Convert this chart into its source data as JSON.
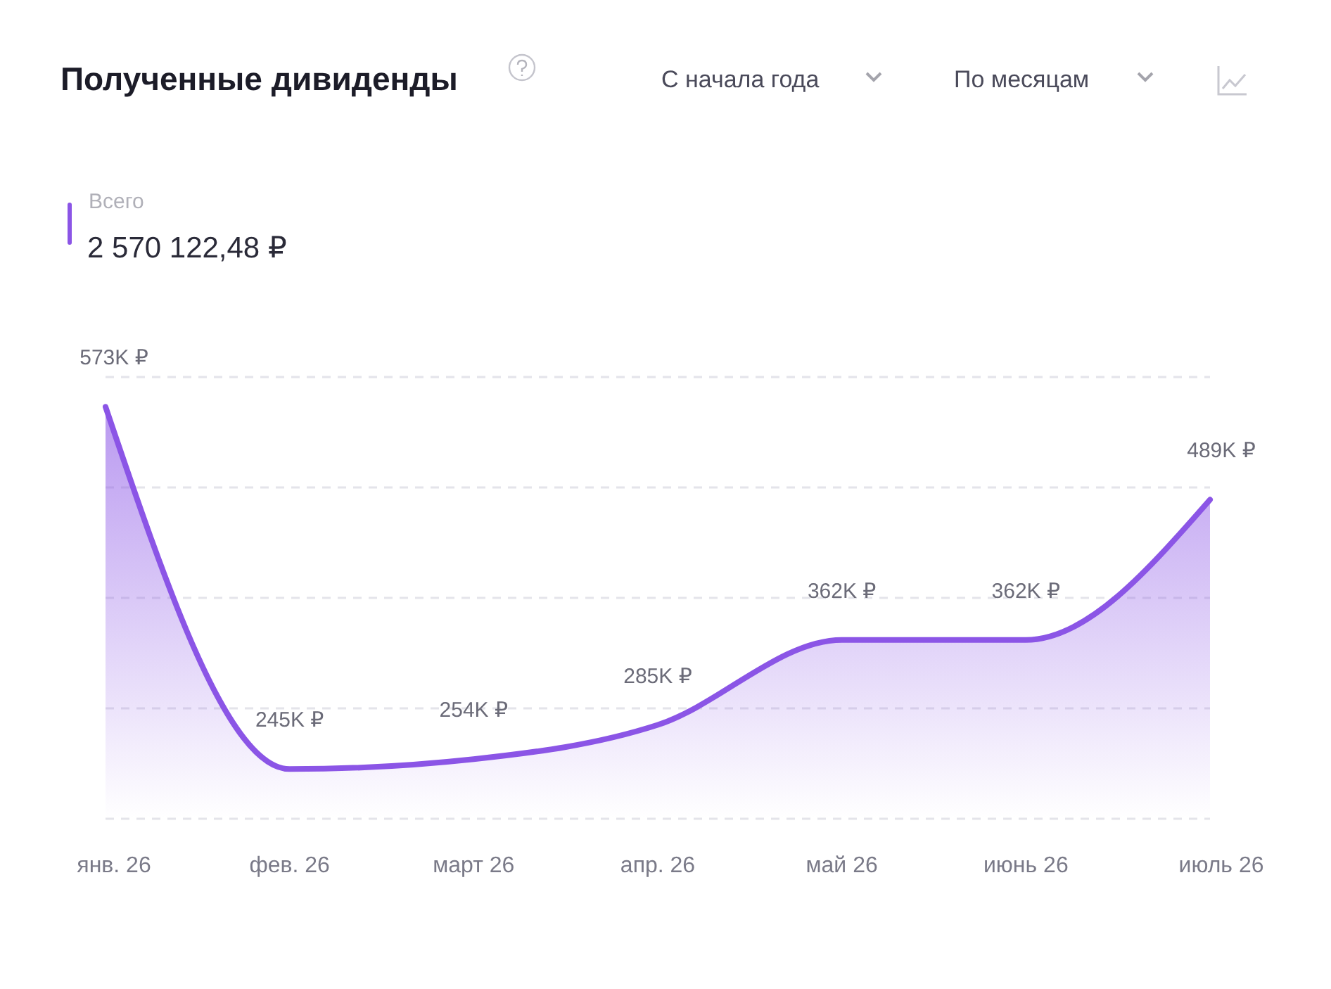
{
  "chart_data": {
    "type": "area",
    "title": "Полученные дивиденды",
    "annotations": [
      "2 570 122,48 ₽",
      "С начала года",
      "По месяцам"
    ],
    "categories": [
      "янв. 26",
      "фев. 26",
      "март 26",
      "апр. 26",
      "май 26",
      "июнь 26",
      "июль 26"
    ],
    "series": [
      {
        "name": "Всего",
        "color": "#8b55e6",
        "values": [
          573,
          245,
          254,
          285,
          362,
          362,
          489
        ],
        "value_labels": [
          "573K ₽",
          "245K ₽",
          "254K ₽",
          "285K ₽",
          "362K ₽",
          "362K ₽",
          "489K ₽"
        ]
      }
    ],
    "ylim": [
      200,
      600
    ],
    "yticks": [
      {
        "value": 200,
        "label": null
      },
      {
        "value": 300,
        "label": null
      },
      {
        "value": 400,
        "label": null
      },
      {
        "value": 500,
        "label": null
      },
      {
        "value": 600,
        "label": null
      }
    ],
    "grid": "y",
    "tick_labels": "x",
    "legend": "top left"
  }
}
